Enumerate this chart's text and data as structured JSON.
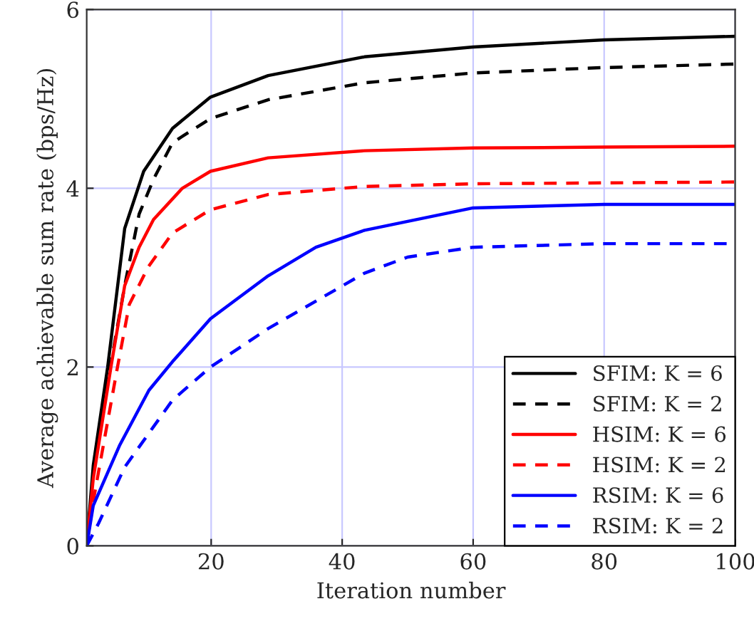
{
  "chart_data": {
    "type": "line",
    "xlabel": "Iteration number",
    "ylabel": "Average achievable sum rate (bps/Hz)",
    "xlim": [
      1,
      100
    ],
    "ylim": [
      0,
      6
    ],
    "xticks": [
      20,
      40,
      60,
      80,
      100
    ],
    "yticks": [
      0,
      2,
      4,
      6
    ],
    "grid": true,
    "legend": "bottom right",
    "marker": "none",
    "x": [
      1,
      2,
      4.2,
      6.8,
      9.7,
      14.1,
      19.9,
      28.7,
      43.4,
      60,
      80,
      100
    ],
    "series": [
      {
        "name": "SFIM: K = 6",
        "color": "#000000",
        "line_style": "solid",
        "values": [
          0,
          0.9,
          2.0,
          3.55,
          4.19,
          4.67,
          5.02,
          5.26,
          5.47,
          5.58,
          5.66,
          5.7
        ]
      },
      {
        "name": "SFIM: K = 2",
        "color": "#000000",
        "line_style": "dashed",
        "x": [
          1,
          2,
          4.6,
          6.8,
          9.0,
          11.2,
          14.1,
          19.9,
          28.7,
          43.4,
          60,
          80,
          100
        ],
        "values": [
          0,
          0.8,
          2.0,
          2.91,
          3.71,
          4.1,
          4.51,
          4.78,
          4.99,
          5.18,
          5.29,
          5.35,
          5.39
        ]
      },
      {
        "name": "HSIM: K = 6",
        "color": "#ff0000",
        "line_style": "solid",
        "x": [
          1,
          2,
          4.7,
          6.8,
          9.0,
          11.2,
          15.6,
          19.9,
          28.7,
          43.4,
          60,
          80,
          100
        ],
        "values": [
          0,
          0.75,
          2.0,
          2.91,
          3.34,
          3.65,
          4.0,
          4.19,
          4.34,
          4.42,
          4.45,
          4.46,
          4.47
        ]
      },
      {
        "name": "HSIM: K = 2",
        "color": "#ff0000",
        "line_style": "dashed",
        "x": [
          1,
          2,
          5.7,
          7.5,
          10.4,
          14.1,
          19.9,
          28.7,
          43.4,
          60,
          80,
          100
        ],
        "values": [
          0,
          0.5,
          2.0,
          2.7,
          3.12,
          3.5,
          3.76,
          3.93,
          4.02,
          4.05,
          4.06,
          4.07
        ]
      },
      {
        "name": "RSIM: K = 6",
        "color": "#0000ff",
        "line_style": "solid",
        "x": [
          1,
          2,
          6.0,
          10.5,
          14.1,
          19.9,
          28.7,
          36,
          43.4,
          60,
          80,
          100
        ],
        "values": [
          0,
          0.45,
          1.12,
          1.74,
          2.06,
          2.54,
          3.02,
          3.34,
          3.53,
          3.78,
          3.82,
          3.82
        ]
      },
      {
        "name": "RSIM: K = 2",
        "color": "#0000ff",
        "line_style": "dashed",
        "x": [
          1,
          2.8,
          6.8,
          14.1,
          19.9,
          28.7,
          43.4,
          50,
          60,
          80,
          100
        ],
        "values": [
          0,
          0.25,
          0.88,
          1.63,
          2.0,
          2.43,
          3.05,
          3.23,
          3.34,
          3.38,
          3.38
        ]
      }
    ]
  }
}
